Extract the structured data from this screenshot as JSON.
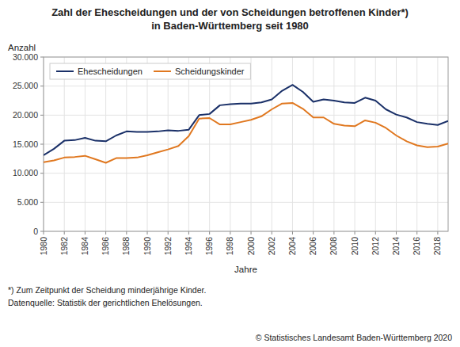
{
  "chart_data": {
    "type": "line",
    "title": "Zahl der Ehescheidungen und der von Scheidungen betroffenen Kinder*)",
    "subtitle": "in Baden-Württemberg seit 1980",
    "ylabel": "Anzahl",
    "xlabel": "Jahre",
    "annotations": [
      "*) Zum Zeitpunkt der Scheidung minderjährige Kinder.",
      "Datenquelle: Statistik der gerichtlichen Ehelösungen.",
      "© Statistisches Landesamt Baden-Württemberg 2020"
    ],
    "x": [
      1980,
      1981,
      1982,
      1983,
      1984,
      1985,
      1986,
      1987,
      1988,
      1989,
      1990,
      1991,
      1992,
      1993,
      1994,
      1995,
      1996,
      1997,
      1998,
      1999,
      2000,
      2001,
      2002,
      2003,
      2004,
      2005,
      2006,
      2007,
      2008,
      2009,
      2010,
      2011,
      2012,
      2013,
      2014,
      2015,
      2016,
      2017,
      2018,
      2019
    ],
    "series": [
      {
        "name": "Ehescheidungen",
        "color": "#1a3068",
        "values": [
          13100,
          14200,
          15600,
          15700,
          16100,
          15600,
          15500,
          16500,
          17200,
          17100,
          17100,
          17200,
          17400,
          17300,
          17500,
          20000,
          20200,
          21700,
          21900,
          22000,
          22000,
          22200,
          22700,
          24200,
          25200,
          24000,
          22300,
          22700,
          22500,
          22200,
          22100,
          23000,
          22500,
          21000,
          20100,
          19600,
          18800,
          18500,
          18300,
          19000
        ]
      },
      {
        "name": "Scheidungskinder",
        "color": "#e07820",
        "values": [
          11900,
          12200,
          12700,
          12800,
          13000,
          12400,
          11800,
          12600,
          12600,
          12700,
          13100,
          13600,
          14100,
          14700,
          16400,
          19400,
          19500,
          18400,
          18400,
          18800,
          19200,
          19800,
          21000,
          22000,
          22100,
          21100,
          19600,
          19600,
          18500,
          18200,
          18100,
          19100,
          18700,
          17800,
          16500,
          15500,
          14800,
          14500,
          14600,
          15100
        ]
      }
    ],
    "xlim": [
      1980,
      2019
    ],
    "xticks": [
      1980,
      1982,
      1984,
      1986,
      1988,
      1990,
      1992,
      1994,
      1996,
      1998,
      2000,
      2002,
      2004,
      2006,
      2008,
      2010,
      2012,
      2014,
      2016,
      2018
    ],
    "ylim": [
      0,
      30000
    ],
    "yticks": [
      0,
      {
        "value": 5000,
        "label": "5.000"
      },
      {
        "value": 10000,
        "label": "10.000"
      },
      {
        "value": 15000,
        "label": "15.000"
      },
      {
        "value": 20000,
        "label": "20.000"
      },
      {
        "value": 25000,
        "label": "25.000"
      },
      {
        "value": 30000,
        "label": "30.000"
      }
    ],
    "grid": true,
    "legend": "upper left"
  }
}
